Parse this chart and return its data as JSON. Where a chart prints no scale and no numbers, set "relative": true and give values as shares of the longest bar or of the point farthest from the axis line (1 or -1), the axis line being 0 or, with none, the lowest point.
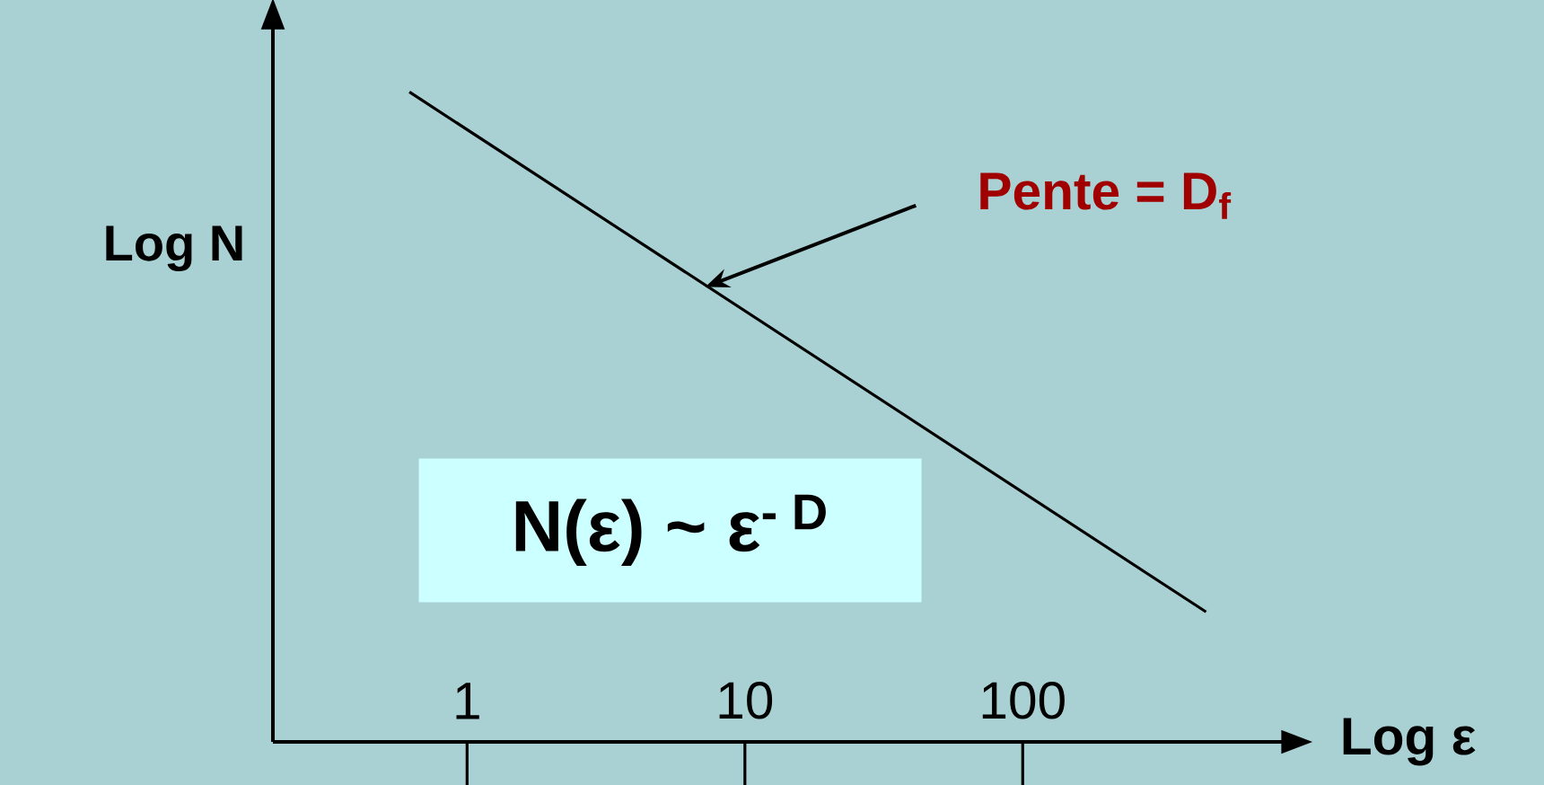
{
  "chart_data": {
    "type": "line",
    "relative": true,
    "log": "x",
    "x": [
      0.62,
      457
    ],
    "values": [
      1,
      0.2
    ],
    "color": "#000000",
    "marker": "none",
    "line_style": "solid",
    "xlim": [
      0.2,
      870
    ],
    "xticks": [
      1,
      10,
      100
    ],
    "xlabel": "Log ε",
    "ylabel": "Log N",
    "annotations": [
      {
        "text": "Pente = D$_{f}$",
        "x": 7.2,
        "y": 0.7
      },
      "N(ε) ~ ε$^{- D}$"
    ]
  }
}
